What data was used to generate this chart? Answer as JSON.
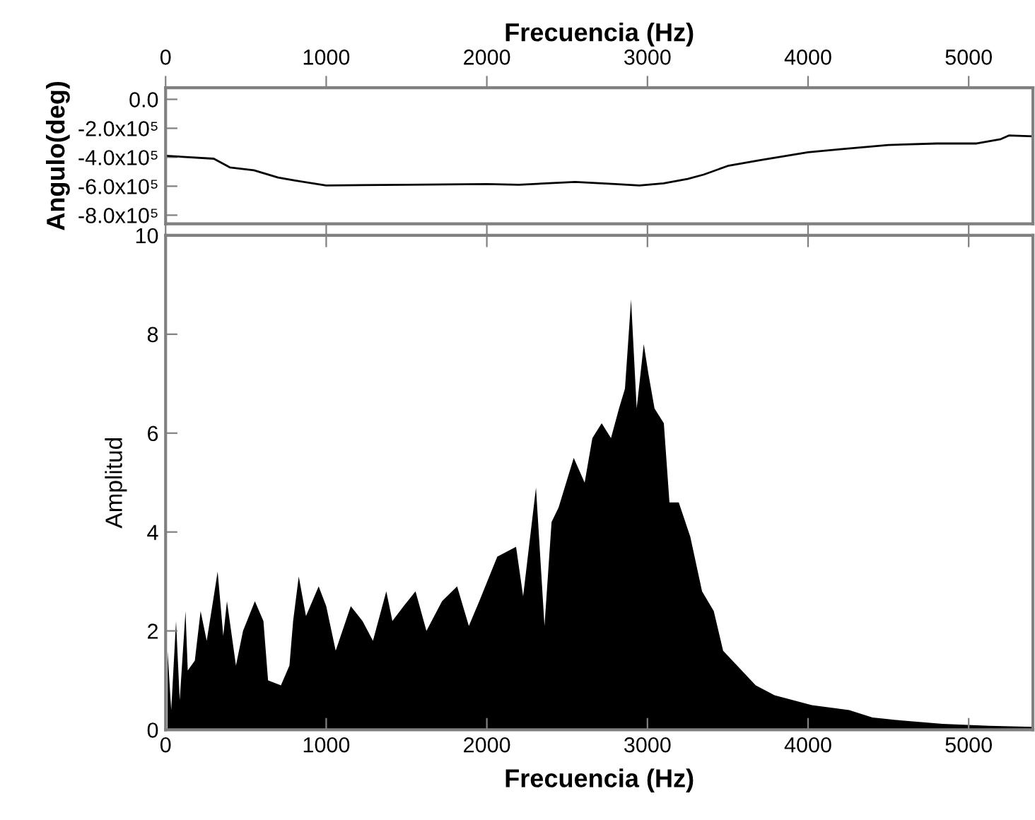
{
  "chart_data": [
    {
      "type": "line",
      "xlabel": "Frecuencia (Hz)",
      "xlim": [
        0,
        5400
      ],
      "xticks": [
        0,
        1000,
        2000,
        3000,
        4000,
        5000
      ],
      "ylabel": "Angulo(deg)",
      "ylim": [
        -860000,
        80000
      ],
      "yticks": [
        {
          "value": 0,
          "label": "0.0"
        },
        {
          "value": -200000,
          "label": "-2.0x10⁵"
        },
        {
          "value": -400000,
          "label": "-4.0x10⁵"
        },
        {
          "value": -600000,
          "label": "-6.0x10⁵"
        },
        {
          "value": -800000,
          "label": "-8.0x10⁵"
        }
      ],
      "grid": false,
      "legend": false,
      "series": [
        {
          "color": "#000000",
          "x": [
            0,
            300,
            400,
            550,
            700,
            800,
            1000,
            1500,
            2000,
            2200,
            2550,
            2800,
            2950,
            3100,
            3250,
            3350,
            3500,
            3700,
            4000,
            4200,
            4500,
            4800,
            5050,
            5200,
            5250,
            5400
          ],
          "values": [
            -390000,
            -410000,
            -470000,
            -490000,
            -540000,
            -560000,
            -595000,
            -590000,
            -585000,
            -590000,
            -570000,
            -585000,
            -595000,
            -580000,
            -550000,
            -520000,
            -460000,
            -420000,
            -365000,
            -345000,
            -315000,
            -305000,
            -305000,
            -275000,
            -250000,
            -255000
          ]
        }
      ]
    },
    {
      "type": "area",
      "xlabel": "Frecuencia (Hz)",
      "xlim": [
        0,
        5400
      ],
      "xticks": [
        0,
        1000,
        2000,
        3000,
        4000,
        5000
      ],
      "ylabel": "Amplitud",
      "ylim": [
        0,
        10
      ],
      "yticks": [
        0,
        2,
        4,
        6,
        8,
        10
      ],
      "grid": false,
      "legend": false,
      "series": [
        {
          "color": "#000000",
          "x": [
            12,
            35,
            65,
            88,
            124,
            138,
            182,
            218,
            256,
            300,
            324,
            359,
            382,
            438,
            482,
            556,
            609,
            638,
            718,
            771,
            794,
            829,
            874,
            953,
            1000,
            1059,
            1153,
            1226,
            1291,
            1374,
            1412,
            1482,
            1556,
            1624,
            1721,
            1815,
            1888,
            1953,
            2065,
            2182,
            2226,
            2306,
            2359,
            2403,
            2447,
            2541,
            2609,
            2657,
            2715,
            2773,
            2823,
            2860,
            2898,
            2933,
            2977,
            3006,
            3044,
            3102,
            3137,
            3195,
            3267,
            3340,
            3413,
            3471,
            3558,
            3674,
            3791,
            3907,
            4023,
            4140,
            4256,
            4401,
            4547,
            4837,
            5128,
            5400
          ],
          "values": [
            1.6,
            0.4,
            2.2,
            0.6,
            2.4,
            1.2,
            1.4,
            2.4,
            1.8,
            2.7,
            3.2,
            1.9,
            2.6,
            1.3,
            2.0,
            2.6,
            2.2,
            1.0,
            0.9,
            1.3,
            2.2,
            3.1,
            2.3,
            2.9,
            2.5,
            1.6,
            2.5,
            2.2,
            1.8,
            2.8,
            2.2,
            2.5,
            2.8,
            2.0,
            2.6,
            2.9,
            2.1,
            2.6,
            3.5,
            3.7,
            2.7,
            4.9,
            2.1,
            4.2,
            4.5,
            5.5,
            5.0,
            5.9,
            6.2,
            5.9,
            6.5,
            6.9,
            8.7,
            6.5,
            7.8,
            7.2,
            6.5,
            6.2,
            4.6,
            4.6,
            3.9,
            2.8,
            2.4,
            1.6,
            1.3,
            0.9,
            0.7,
            0.6,
            0.5,
            0.45,
            0.4,
            0.25,
            0.2,
            0.12,
            0.08,
            0.06
          ]
        }
      ]
    }
  ]
}
